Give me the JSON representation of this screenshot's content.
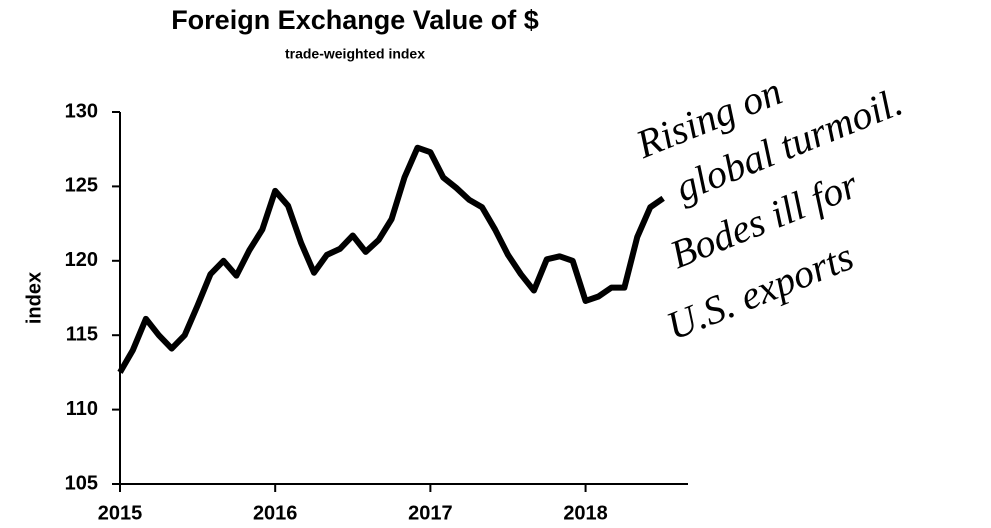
{
  "chart_data": {
    "type": "line",
    "title": "Foreign Exchange Value of $",
    "subtitle": "trade-weighted index",
    "y_label": "index",
    "annotation": [
      "Rising on",
      "global turmoil.",
      "Bodes ill for",
      "U.S. exports"
    ],
    "x": [
      2015,
      2015.083,
      2015.167,
      2015.25,
      2015.333,
      2015.417,
      2015.5,
      2015.583,
      2015.667,
      2015.75,
      2015.833,
      2015.917,
      2016,
      2016.083,
      2016.167,
      2016.25,
      2016.333,
      2016.417,
      2016.5,
      2016.583,
      2016.667,
      2016.75,
      2016.833,
      2016.917,
      2017,
      2017.083,
      2017.167,
      2017.25,
      2017.333,
      2017.417,
      2017.5,
      2017.583,
      2017.667,
      2017.75,
      2017.833,
      2017.917,
      2018,
      2018.083,
      2018.167,
      2018.25,
      2018.333,
      2018.417,
      2018.5
    ],
    "series": [
      {
        "name": "index",
        "color": "#000000",
        "values": [
          112.5,
          114.0,
          116.1,
          115.0,
          114.1,
          115.0,
          117.0,
          119.1,
          120.0,
          119.0,
          120.7,
          122.1,
          124.7,
          123.7,
          121.2,
          119.2,
          120.4,
          120.8,
          121.7,
          120.6,
          121.4,
          122.8,
          125.6,
          127.6,
          127.3,
          125.6,
          124.9,
          124.1,
          123.6,
          122.1,
          120.4,
          119.1,
          118.0,
          120.1,
          120.3,
          120.0,
          117.3,
          117.6,
          118.2,
          118.2,
          121.6,
          123.6,
          124.2
        ]
      }
    ],
    "xlim": [
      2015,
      2018.66
    ],
    "xticks": [
      2015,
      2016,
      2017,
      2018
    ],
    "ylim": [
      105,
      130
    ],
    "yticks": [
      105,
      110,
      115,
      120,
      125,
      130
    ]
  }
}
